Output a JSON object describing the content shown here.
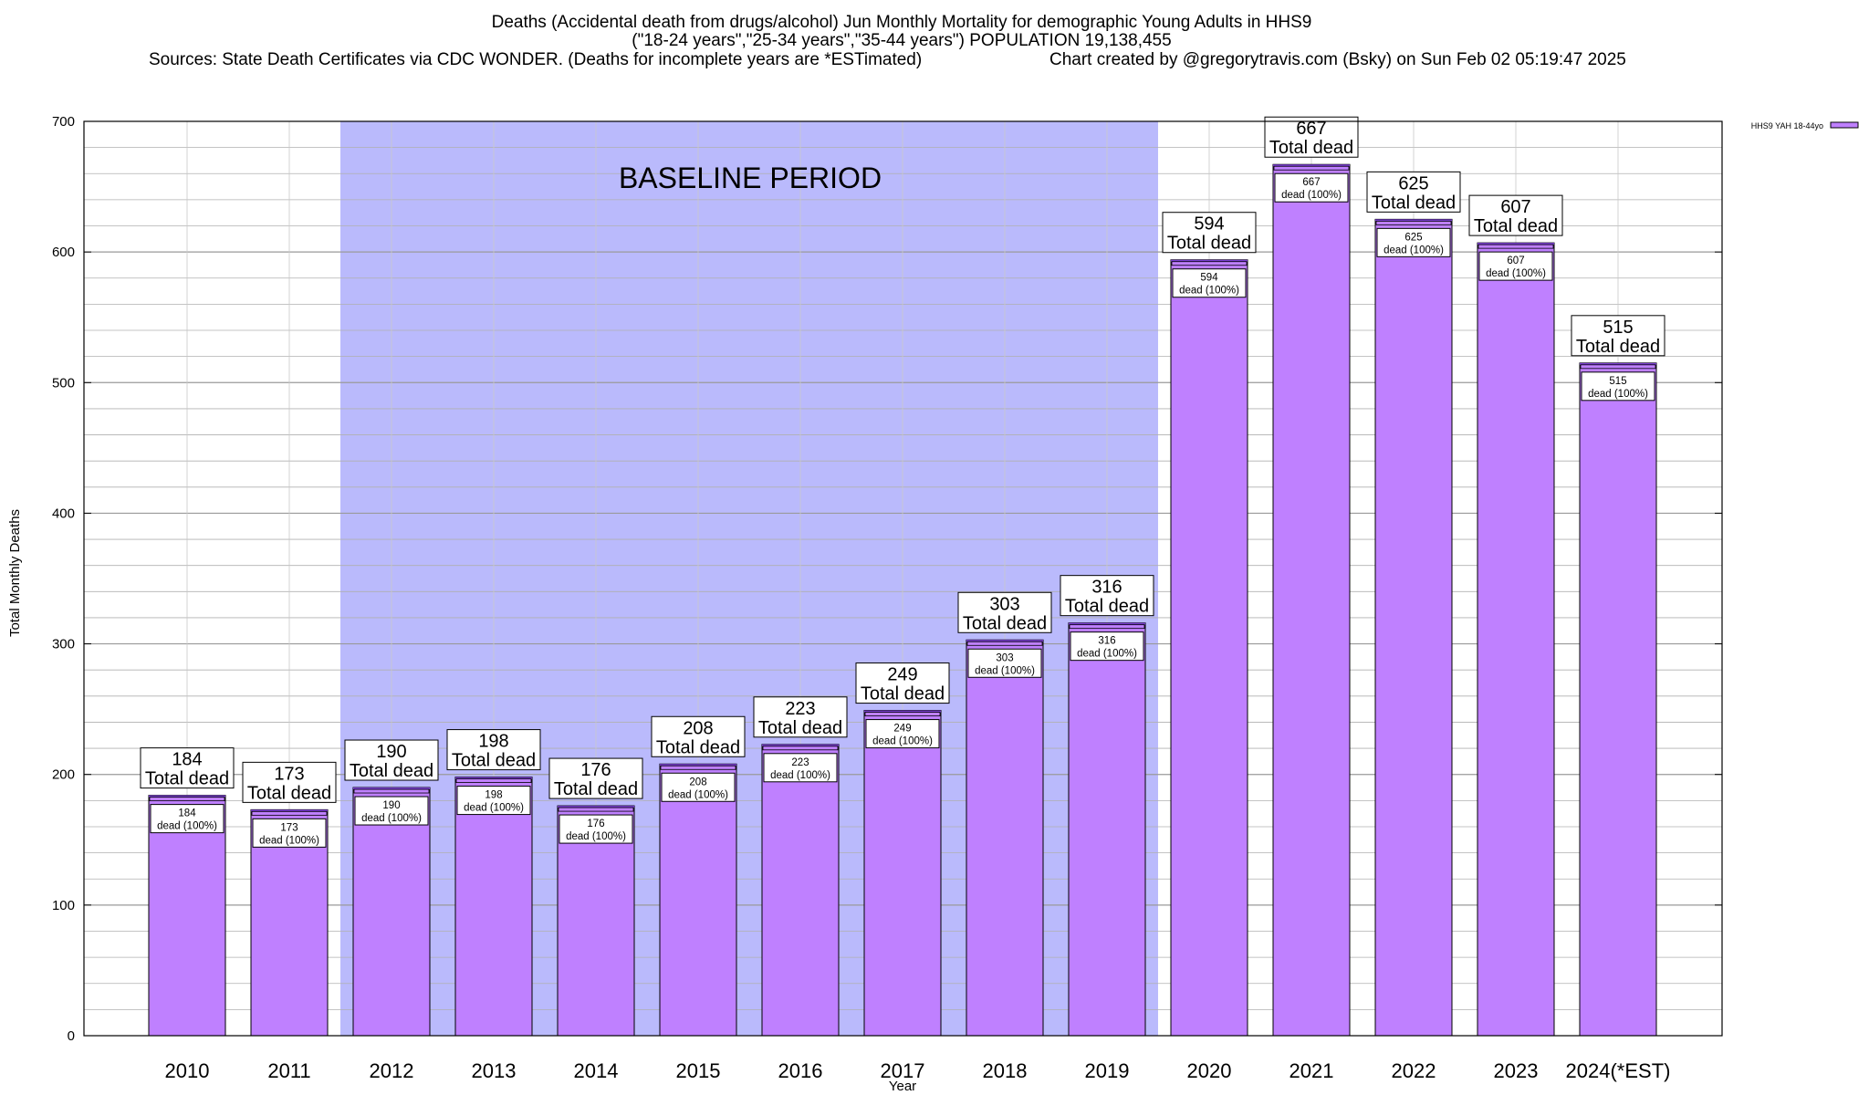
{
  "header": {
    "title_line1": "Deaths (Accidental death from drugs/alcohol) Jun Monthly Mortality for demographic Young Adults in HHS9",
    "title_line2": "(\"18-24 years\",\"25-34 years\",\"35-44 years\") POPULATION 19,138,455",
    "sources": "Sources: State Death Certificates via CDC WONDER. (Deaths for incomplete years are *ESTimated)",
    "credit": "Chart created by @gregorytravis.com (Bsky) on Sun Feb 02 05:19:47 2025"
  },
  "chart_data": {
    "type": "bar",
    "xlabel": "Year",
    "ylabel": "Total Monthly Deaths",
    "ylim": [
      0,
      700
    ],
    "yticks": [
      0,
      100,
      200,
      300,
      400,
      500,
      600,
      700
    ],
    "categories": [
      "2010",
      "2011",
      "2012",
      "2013",
      "2014",
      "2015",
      "2016",
      "2017",
      "2018",
      "2019",
      "2020",
      "2021",
      "2022",
      "2023",
      "2024(*EST)"
    ],
    "series": [
      {
        "name": "HHS9 YAH 18-44yo",
        "values": [
          184,
          173,
          190,
          198,
          176,
          208,
          223,
          249,
          303,
          316,
          594,
          667,
          625,
          607,
          515
        ]
      }
    ],
    "total_label_suffix": "Total dead",
    "inner_label_suffix": "dead (100%)",
    "baseline": {
      "label": "BASELINE PERIOD",
      "start": "2012",
      "end": "2019"
    },
    "legend_position": "top-right",
    "grid": true,
    "colors": {
      "bar_fill": "#bf80ff",
      "bar_stroke": "#000000",
      "bar_top": "#7a3fd0",
      "baseline_band": "#babafc",
      "grid": "#b0b0b0"
    }
  }
}
